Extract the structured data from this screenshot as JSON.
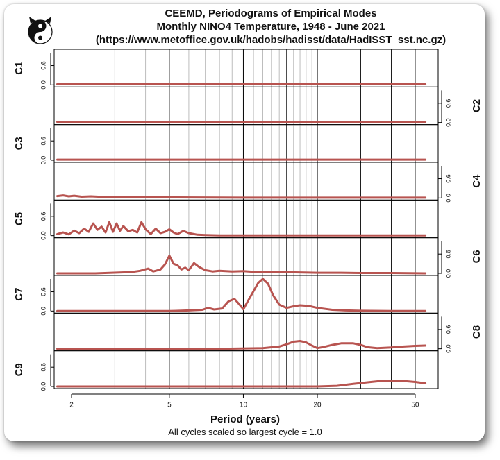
{
  "title": "CEEMD, Periodograms of Empirical Modes",
  "subtitle": "Monthly NINO4 Temperature, 1948 - June 2021",
  "source": "(https://www.metoffice.gov.uk/hadobs/hadisst/data/HadISST_sst.nc.gz)",
  "note": "All cycles scaled so largest cycle = 1.0",
  "logo_icon": "yin-yang-cat-logo",
  "colors": {
    "line": "#b85450",
    "axis": "#000000",
    "grid_minor": "#bdbdbd",
    "grid_major": "#000000"
  },
  "chart_data": {
    "type": "line",
    "xlabel": "Period (years)",
    "xscale": "log",
    "xlim": [
      1.7,
      62
    ],
    "xticks": [
      2,
      5,
      10,
      20,
      50
    ],
    "xtick_labels": [
      "2",
      "5",
      "10",
      "20",
      "50"
    ],
    "major_gridlines": [
      5,
      10,
      15,
      20,
      30,
      40,
      50
    ],
    "minor_gridlines": [
      3,
      4,
      6,
      7,
      8,
      9,
      11,
      12,
      13,
      14,
      16,
      17,
      18,
      19
    ],
    "ylim": [
      0,
      1
    ],
    "yticks": [
      0.0,
      0.6
    ],
    "ytick_labels": [
      "0.0",
      "0.6"
    ],
    "grid": true,
    "panels": [
      {
        "name": "C1",
        "axis_side": "left",
        "x": [
          1.75,
          5,
          10,
          30,
          55
        ],
        "y": [
          0.02,
          0.02,
          0.02,
          0.02,
          0.02
        ]
      },
      {
        "name": "C2",
        "axis_side": "right",
        "x": [
          1.75,
          5,
          10,
          30,
          55
        ],
        "y": [
          0.02,
          0.02,
          0.02,
          0.02,
          0.02
        ]
      },
      {
        "name": "C3",
        "axis_side": "left",
        "x": [
          1.75,
          5,
          10,
          30,
          55
        ],
        "y": [
          0.02,
          0.02,
          0.02,
          0.02,
          0.02
        ]
      },
      {
        "name": "C4",
        "axis_side": "right",
        "x": [
          1.75,
          1.85,
          1.95,
          2.05,
          2.2,
          2.4,
          2.7,
          3.0,
          3.5,
          4,
          5,
          10,
          30,
          55
        ],
        "y": [
          0.06,
          0.08,
          0.05,
          0.07,
          0.04,
          0.05,
          0.03,
          0.03,
          0.02,
          0.02,
          0.02,
          0.01,
          0.01,
          0.01
        ]
      },
      {
        "name": "C5",
        "axis_side": "left",
        "x": [
          1.75,
          1.85,
          1.95,
          2.05,
          2.15,
          2.25,
          2.35,
          2.45,
          2.55,
          2.65,
          2.75,
          2.85,
          2.95,
          3.05,
          3.15,
          3.25,
          3.4,
          3.55,
          3.7,
          3.85,
          4.0,
          4.2,
          4.4,
          4.6,
          4.8,
          5.0,
          5.2,
          5.4,
          5.7,
          6.0,
          6.5,
          7,
          8,
          10,
          20,
          55
        ],
        "y": [
          0.05,
          0.1,
          0.04,
          0.16,
          0.08,
          0.22,
          0.12,
          0.38,
          0.18,
          0.28,
          0.1,
          0.42,
          0.12,
          0.38,
          0.15,
          0.3,
          0.14,
          0.18,
          0.1,
          0.42,
          0.2,
          0.05,
          0.22,
          0.08,
          0.12,
          0.2,
          0.1,
          0.05,
          0.15,
          0.08,
          0.03,
          0.02,
          0.01,
          0.01,
          0.01,
          0.01
        ]
      },
      {
        "name": "C6",
        "axis_side": "right",
        "x": [
          1.75,
          2.5,
          3.5,
          3.8,
          4.1,
          4.3,
          4.6,
          4.8,
          5.0,
          5.2,
          5.4,
          5.6,
          5.8,
          6.0,
          6.3,
          6.6,
          7.0,
          7.5,
          8,
          9,
          10,
          11,
          12,
          14,
          17,
          20,
          25,
          30,
          40,
          55
        ],
        "y": [
          0.0,
          0.0,
          0.04,
          0.08,
          0.15,
          0.06,
          0.12,
          0.28,
          0.55,
          0.3,
          0.25,
          0.12,
          0.18,
          0.1,
          0.32,
          0.2,
          0.1,
          0.06,
          0.08,
          0.06,
          0.07,
          0.05,
          0.04,
          0.04,
          0.03,
          0.02,
          0.02,
          0.01,
          0.01,
          0.0
        ]
      },
      {
        "name": "C7",
        "axis_side": "left",
        "x": [
          1.75,
          5,
          6,
          6.8,
          7.2,
          7.6,
          8.2,
          8.7,
          9.2,
          9.6,
          10.0,
          10.5,
          11.0,
          11.5,
          12.0,
          12.6,
          13.2,
          14.0,
          15.0,
          16.0,
          17.0,
          18.5,
          20,
          23,
          26,
          30,
          40,
          55
        ],
        "y": [
          0.0,
          0.0,
          0.02,
          0.04,
          0.1,
          0.05,
          0.08,
          0.3,
          0.38,
          0.22,
          0.06,
          0.35,
          0.62,
          0.88,
          1.0,
          0.85,
          0.5,
          0.2,
          0.1,
          0.15,
          0.18,
          0.16,
          0.1,
          0.04,
          0.02,
          0.01,
          0.0,
          0.0
        ]
      },
      {
        "name": "C8",
        "axis_side": "right",
        "x": [
          1.75,
          8,
          12,
          14,
          15,
          16,
          17,
          18,
          19,
          20,
          21,
          23,
          25,
          28,
          30,
          32,
          35,
          40,
          45,
          50,
          55
        ],
        "y": [
          0.0,
          0.0,
          0.02,
          0.07,
          0.14,
          0.22,
          0.24,
          0.2,
          0.1,
          0.02,
          0.05,
          0.12,
          0.17,
          0.17,
          0.12,
          0.05,
          0.02,
          0.04,
          0.07,
          0.09,
          0.1
        ]
      },
      {
        "name": "C9",
        "axis_side": "left",
        "x": [
          1.75,
          10,
          20,
          24,
          28,
          32,
          36,
          40,
          45,
          50,
          55
        ],
        "y": [
          0.0,
          0.0,
          0.0,
          0.02,
          0.08,
          0.13,
          0.17,
          0.18,
          0.17,
          0.14,
          0.1
        ]
      }
    ]
  }
}
